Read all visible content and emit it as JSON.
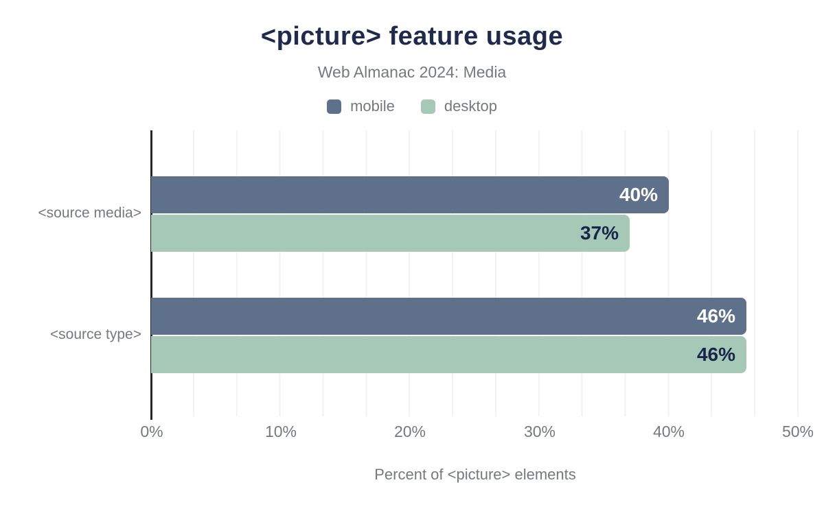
{
  "header": {
    "title": "<picture> feature usage",
    "subtitle": "Web Almanac 2024: Media"
  },
  "colors": {
    "title_text": "#1e2b4c",
    "muted_text": "#75787e",
    "axis_line": "#26262b",
    "gridline": "#f2f2f2",
    "mobile_bar": "#5f708a",
    "desktop_bar": "#a6c9b7",
    "label_on_mobile": "#ffffff",
    "label_on_desktop": "#18254a"
  },
  "chart_data": {
    "type": "bar",
    "orientation": "horizontal",
    "title": "<picture> feature usage",
    "subtitle": "Web Almanac 2024: Media",
    "xlabel": "Percent of <picture> elements",
    "ylabel": "",
    "xlim": [
      0,
      50
    ],
    "xticks": [
      "0%",
      "10%",
      "20%",
      "30%",
      "40%",
      "50%"
    ],
    "grid": "vertical-minor",
    "legend_position": "top-center",
    "categories": [
      "<source media>",
      "<source type>"
    ],
    "series": [
      {
        "name": "mobile",
        "color": "#5f708a",
        "label_color": "#ffffff",
        "values": [
          40,
          46
        ],
        "labels": [
          "40%",
          "46%"
        ]
      },
      {
        "name": "desktop",
        "color": "#a6c9b7",
        "label_color": "#18254a",
        "values": [
          37,
          46
        ],
        "labels": [
          "37%",
          "46%"
        ]
      }
    ]
  }
}
